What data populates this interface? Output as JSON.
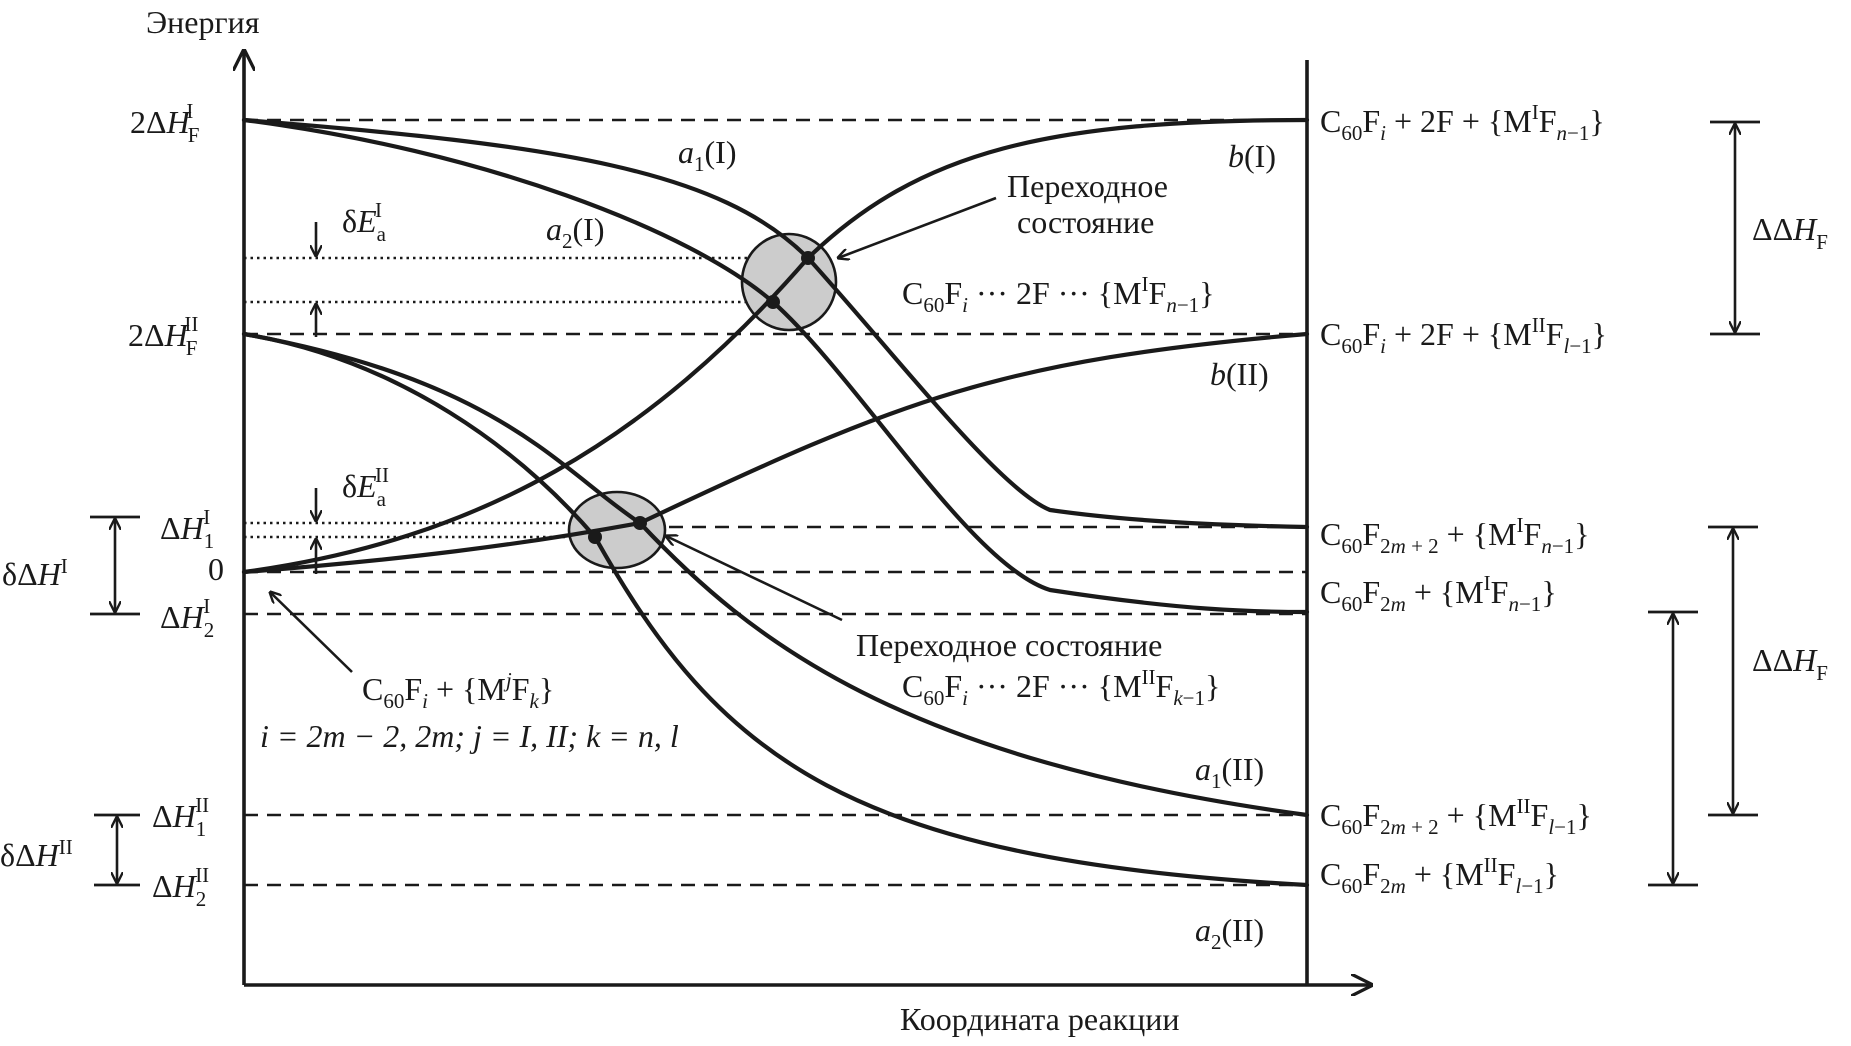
{
  "axes": {
    "y_label": "Энергия",
    "x_label": "Координата реакции"
  },
  "curves": {
    "a1_I": "a1(I)",
    "a2_I": "a2(I)",
    "b_I": "b(I)",
    "b_II": "b(II)",
    "a1_II": "a1(II)",
    "a2_II": "a2(II)"
  },
  "left_levels": {
    "two_dH_F_I": "2ΔHFI",
    "two_dH_F_II": "2ΔHFII",
    "dH1_I": "ΔH1I",
    "zero": "0",
    "dH2_I": "ΔH2I",
    "dH1_II": "ΔH1II",
    "dH2_II": "ΔH2II",
    "ddH_I": "δΔHI",
    "ddH_II": "δΔHII",
    "dEa_I": "δEaI",
    "dEa_II": "δEaII"
  },
  "right_levels": {
    "r1": "C60Fi + 2F + {MIFn−1}",
    "r2": "C60Fi + 2F + {MIIFl−1}",
    "r3": "C60F2m+2 + {MIFn−1}",
    "r4": "C60F2m + {MIFn−1}",
    "r5": "C60F2m+2 + {MIIFl−1}",
    "r6": "C60F2m + {MIIFl−1}",
    "ddH_F_1": "ΔΔHF",
    "ddH_F_2": "ΔΔHF"
  },
  "annotations": {
    "ts_upper_title_1": "Переходное",
    "ts_upper_title_2": "состояние",
    "ts_upper_formula": "C60Fi ··· 2F ··· {MIFn−1}",
    "ts_lower_title": "Переходное состояние",
    "ts_lower_formula": "C60Fi ··· 2F ··· {MIIFk−1}",
    "reactant_formula": "C60Fi + {MjFk}",
    "reactant_indices": "i = 2m − 2, 2m; j = I, II; k = n, l"
  }
}
